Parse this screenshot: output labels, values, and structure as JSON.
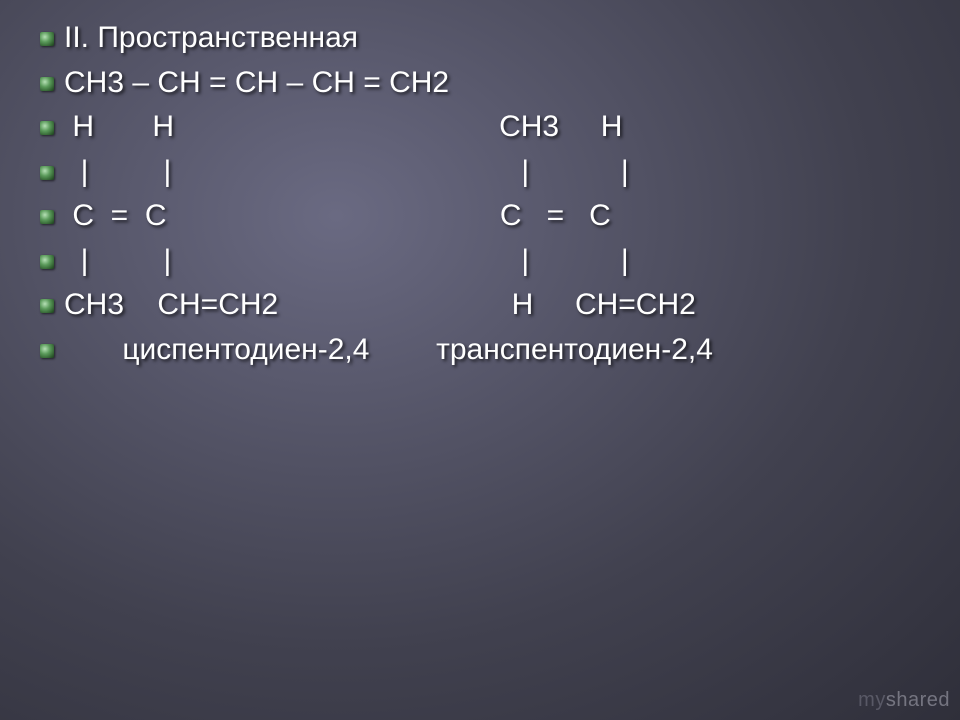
{
  "slide": {
    "background_gradient": [
      "#6a6a82",
      "#555568",
      "#41414f",
      "#2f2f3a"
    ],
    "bullet_color": "#5a9a5a",
    "text_color": "#ffffff",
    "font_size": 30,
    "lines": [
      {
        "text": "II. Пространственная"
      },
      {
        "text": "СН3 – СН = СН – СН = СН2"
      },
      {
        "text": " Н       Н                                       СН3     Н"
      },
      {
        "text": "  |         |                                          |           |"
      },
      {
        "text": " С  =  С                                        С   =   С"
      },
      {
        "text": "  |         |                                          |           |"
      },
      {
        "text": "СН3    СН=СН2                            Н     СН=СН2"
      },
      {
        "text": "       циспентодиен-2,4        транспентодиен-2,4"
      }
    ]
  },
  "watermark": {
    "part1": "my",
    "part2": "shared"
  }
}
